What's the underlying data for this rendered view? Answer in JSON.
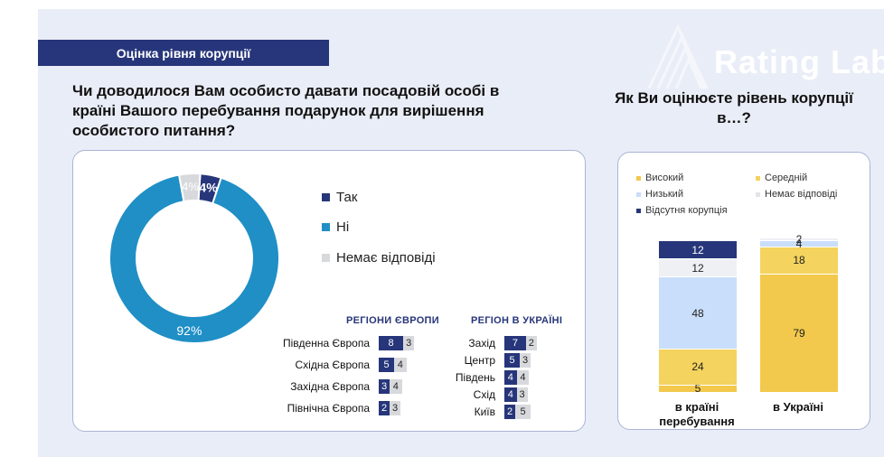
{
  "header": {
    "section_title": "Оцінка рівня корупції"
  },
  "watermark": {
    "text": "Rating Lab"
  },
  "colors": {
    "navy": "#27367a",
    "teal": "#1f8fc6",
    "grey": "#d8d9dc",
    "high": "#f2c94c",
    "medium": "#f4d35e",
    "low": "#c9defa",
    "no_answer": "#eef0f4",
    "none": "#27367a"
  },
  "left_question": "Чи доводилося Вам особисто давати посадовій особі в країні Вашого перебування подарунок для вирішення особистого питання?",
  "right_question": "Як Ви оцінюєте рівень корупції в…?",
  "chart_data": [
    {
      "type": "pie",
      "variant": "donut",
      "categories": [
        "Так",
        "Ні",
        "Немає відповіді"
      ],
      "values": [
        4,
        92,
        4
      ],
      "data_labels": [
        "4%",
        "92%",
        "4%"
      ],
      "legend": [
        "Так",
        "Ні",
        "Немає відповіді"
      ],
      "legend_position": "right"
    },
    {
      "type": "bar",
      "orientation": "horizontal",
      "stacked": true,
      "title": "РЕГІОНИ ЄВРОПИ",
      "categories": [
        "Південна Європа",
        "Східна Європа",
        "Західна Європа",
        "Північна Європа"
      ],
      "series": [
        {
          "values": [
            8,
            5,
            3,
            2
          ]
        },
        {
          "values": [
            3,
            4,
            4,
            3
          ]
        }
      ]
    },
    {
      "type": "bar",
      "orientation": "horizontal",
      "stacked": true,
      "title": "РЕГІОН В УКРАЇНІ",
      "categories": [
        "Захід",
        "Центр",
        "Південь",
        "Схід",
        "Київ"
      ],
      "series": [
        {
          "values": [
            7,
            5,
            4,
            4,
            2
          ]
        },
        {
          "values": [
            2,
            3,
            4,
            3,
            5
          ]
        }
      ]
    },
    {
      "type": "bar",
      "stacked": true,
      "categories": [
        "в країні перебування",
        "в Україні"
      ],
      "series": [
        {
          "name": "Високий",
          "values": [
            5,
            79
          ]
        },
        {
          "name": "Середній",
          "values": [
            24,
            18
          ]
        },
        {
          "name": "Низький",
          "values": [
            48,
            4
          ]
        },
        {
          "name": "Немає відповіді",
          "values": [
            12,
            2
          ]
        },
        {
          "name": "Відсутня корупція",
          "values": [
            12,
            0
          ]
        }
      ],
      "legend": [
        "Високий",
        "Середній",
        "Низький",
        "Немає відповіді",
        "Відсутня корупція"
      ],
      "legend_position": "top"
    }
  ]
}
